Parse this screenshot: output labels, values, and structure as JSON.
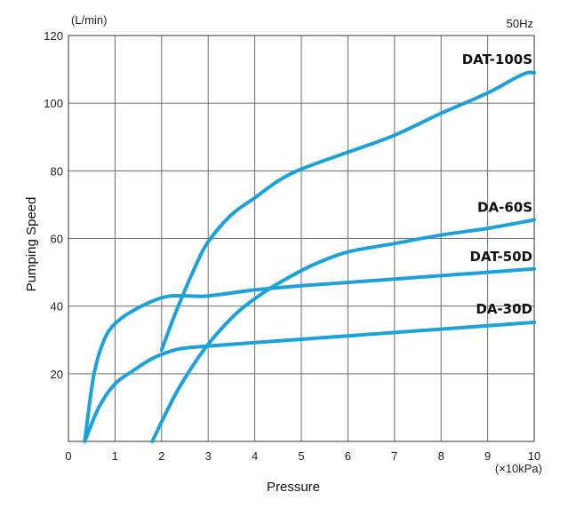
{
  "chart_data": {
    "type": "line",
    "title": "",
    "xlabel": "Pressure",
    "ylabel": "Pumping Speed",
    "x_unit": "(×10kPa)",
    "y_unit": "(L/min)",
    "frequency_note": "50Hz",
    "xlim": [
      0,
      10
    ],
    "ylim": [
      0,
      120
    ],
    "x_ticks": [
      "0",
      "1",
      "2",
      "3",
      "4",
      "5",
      "6",
      "7",
      "8",
      "9",
      "10"
    ],
    "y_ticks": [
      "20",
      "40",
      "60",
      "80",
      "100",
      "120"
    ],
    "grid": true,
    "legend": "inline labels at right end of each curve",
    "line_color": "#1ba1dc",
    "series": [
      {
        "name": "DAT-100S",
        "x": [
          2.0,
          2.3,
          2.7,
          3.0,
          3.5,
          4.0,
          4.5,
          5.0,
          6.0,
          7.0,
          8.0,
          9.0,
          9.6,
          9.85,
          10.0
        ],
        "y": [
          27,
          38,
          51,
          59,
          67,
          72,
          77,
          80.5,
          85.5,
          90.5,
          97,
          103,
          107.5,
          109,
          109
        ]
      },
      {
        "name": "DA-60S",
        "x": [
          1.8,
          2.3,
          2.8,
          3.2,
          3.7,
          4.3,
          4.8,
          5.3,
          6.0,
          7.0,
          8.0,
          9.0,
          10.0
        ],
        "y": [
          0,
          14,
          25,
          32,
          39,
          45,
          49,
          52.5,
          56,
          58.5,
          61,
          63,
          65.5
        ]
      },
      {
        "name": "DAT-50D",
        "x": [
          0.35,
          0.55,
          0.8,
          1.1,
          1.5,
          1.9,
          2.2,
          2.6,
          3.0,
          4.0,
          5.0,
          6.0,
          7.0,
          8.0,
          9.0,
          10.0
        ],
        "y": [
          0,
          20,
          31,
          36,
          39.5,
          42,
          43,
          43,
          43,
          44.8,
          46,
          47,
          48,
          49,
          50,
          51
        ]
      },
      {
        "name": "DA-30D",
        "x": [
          0.35,
          0.65,
          1.0,
          1.4,
          1.8,
          2.2,
          2.5,
          3.0,
          4.0,
          5.0,
          6.0,
          7.0,
          8.0,
          9.0,
          10.0
        ],
        "y": [
          0,
          10,
          17,
          21,
          24.5,
          26.7,
          27.6,
          28.2,
          29.2,
          30.2,
          31.2,
          32.2,
          33.2,
          34.2,
          35.2
        ]
      }
    ]
  }
}
